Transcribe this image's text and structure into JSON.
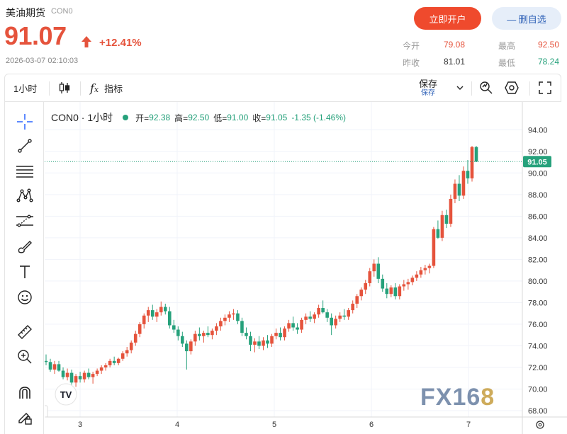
{
  "header": {
    "name": "美油期货",
    "code": "CON0",
    "price": "91.07",
    "change_pct": "+12.41%",
    "timestamp": "2026-03-07 02:10:03"
  },
  "actions": {
    "open_account": "立即开户",
    "remove_watch": "— 删自选"
  },
  "stats": {
    "open_label": "今开",
    "open_value": "79.08",
    "prev_label": "昨收",
    "prev_value": "81.01",
    "high_label": "最高",
    "high_value": "92.50",
    "low_label": "最低",
    "low_value": "78.24"
  },
  "toolbar": {
    "interval": "1小时",
    "indicators": "指标",
    "save": "保存",
    "save_sub": "保存"
  },
  "legend": {
    "symbol": "CON0 · 1小时",
    "open_k": "开=",
    "open_v": "92.38",
    "high_k": "高=",
    "high_v": "92.50",
    "low_k": "低=",
    "low_v": "91.00",
    "close_k": "收=",
    "close_v": "91.05",
    "change_v": "-1.35 (-1.46%)"
  },
  "icons": {
    "left_tools": [
      "crosshair-icon",
      "trend-line-icon",
      "fib-lines-icon",
      "pattern-icon",
      "forecast-icon",
      "brush-icon",
      "text-icon",
      "emoji-icon",
      "ruler-icon",
      "zoom-in-icon",
      "magnet-icon",
      "lock-pencil-icon"
    ]
  },
  "colors": {
    "up": "#e5533c",
    "down": "#26a17b",
    "accent": "#ef4a2d"
  },
  "watermark": "FX168",
  "chart_data": {
    "type": "candlestick",
    "ylim": [
      68,
      95
    ],
    "yticks": [
      "94.00",
      "92.00",
      "90.00",
      "88.00",
      "86.00",
      "84.00",
      "82.00",
      "80.00",
      "78.00",
      "76.00",
      "74.00",
      "72.00",
      "70.00",
      "68.00"
    ],
    "xticks": [
      "3",
      "4",
      "5",
      "6",
      "7"
    ],
    "last_price_label": "91.05",
    "last_price": 91.05,
    "candles": [
      [
        72.6,
        73.2,
        72.2,
        72.5
      ],
      [
        72.5,
        72.8,
        71.6,
        71.8
      ],
      [
        71.8,
        72.6,
        71.4,
        72.3
      ],
      [
        72.3,
        72.6,
        71.6,
        71.7
      ],
      [
        71.7,
        72.0,
        70.9,
        71.1
      ],
      [
        71.1,
        71.9,
        70.8,
        71.5
      ],
      [
        71.5,
        71.8,
        70.4,
        70.6
      ],
      [
        70.6,
        71.4,
        70.2,
        71.2
      ],
      [
        71.2,
        71.6,
        70.6,
        70.9
      ],
      [
        70.9,
        71.7,
        70.6,
        71.5
      ],
      [
        71.5,
        71.9,
        70.9,
        71.1
      ],
      [
        71.1,
        71.6,
        70.5,
        71.4
      ],
      [
        71.4,
        71.9,
        71.2,
        71.7
      ],
      [
        71.7,
        72.2,
        71.4,
        72.0
      ],
      [
        72.0,
        72.4,
        71.7,
        72.2
      ],
      [
        72.2,
        72.8,
        72.0,
        72.6
      ],
      [
        72.6,
        73.0,
        72.2,
        72.4
      ],
      [
        72.4,
        72.9,
        72.2,
        72.8
      ],
      [
        72.8,
        73.5,
        72.6,
        73.3
      ],
      [
        73.3,
        73.9,
        73.0,
        73.6
      ],
      [
        73.6,
        74.5,
        73.3,
        74.3
      ],
      [
        74.3,
        75.4,
        74.0,
        75.1
      ],
      [
        75.1,
        76.2,
        74.8,
        76.0
      ],
      [
        76.0,
        77.0,
        75.6,
        76.8
      ],
      [
        76.8,
        77.6,
        76.2,
        77.3
      ],
      [
        77.3,
        77.8,
        76.4,
        76.7
      ],
      [
        76.7,
        77.4,
        76.2,
        77.1
      ],
      [
        77.1,
        78.1,
        76.8,
        77.6
      ],
      [
        77.6,
        77.9,
        76.9,
        77.2
      ],
      [
        77.2,
        77.6,
        75.6,
        75.9
      ],
      [
        75.9,
        76.4,
        75.2,
        75.5
      ],
      [
        75.5,
        75.8,
        74.5,
        74.9
      ],
      [
        74.9,
        75.3,
        73.9,
        74.2
      ],
      [
        74.2,
        74.5,
        71.8,
        73.5
      ],
      [
        73.5,
        74.6,
        73.2,
        74.4
      ],
      [
        74.4,
        75.4,
        74.0,
        75.1
      ],
      [
        75.1,
        75.7,
        74.5,
        74.9
      ],
      [
        74.9,
        75.4,
        74.3,
        75.2
      ],
      [
        75.2,
        75.8,
        74.8,
        75.0
      ],
      [
        75.0,
        75.6,
        74.6,
        75.4
      ],
      [
        75.4,
        76.1,
        75.0,
        75.8
      ],
      [
        75.8,
        76.6,
        75.4,
        76.3
      ],
      [
        76.3,
        76.9,
        75.9,
        76.6
      ],
      [
        76.6,
        77.2,
        76.2,
        76.9
      ],
      [
        76.9,
        77.4,
        76.4,
        77.0
      ],
      [
        77.0,
        77.3,
        76.0,
        76.3
      ],
      [
        76.3,
        76.6,
        74.9,
        75.2
      ],
      [
        75.2,
        75.7,
        74.6,
        74.9
      ],
      [
        74.9,
        75.3,
        73.5,
        74.1
      ],
      [
        74.1,
        74.7,
        73.4,
        74.4
      ],
      [
        74.4,
        74.9,
        73.7,
        74.0
      ],
      [
        74.0,
        74.8,
        73.6,
        74.5
      ],
      [
        74.5,
        75.0,
        73.8,
        74.2
      ],
      [
        74.2,
        75.1,
        73.9,
        74.9
      ],
      [
        74.9,
        75.6,
        74.6,
        75.2
      ],
      [
        75.2,
        75.7,
        74.5,
        74.8
      ],
      [
        74.8,
        75.8,
        74.5,
        75.6
      ],
      [
        75.6,
        76.4,
        75.3,
        76.1
      ],
      [
        76.1,
        76.7,
        75.4,
        75.7
      ],
      [
        75.7,
        76.1,
        75.1,
        75.5
      ],
      [
        75.5,
        76.6,
        75.2,
        76.4
      ],
      [
        76.4,
        77.0,
        76.0,
        76.7
      ],
      [
        76.7,
        77.2,
        76.2,
        76.5
      ],
      [
        76.5,
        77.1,
        76.1,
        76.9
      ],
      [
        76.9,
        77.8,
        76.6,
        77.5
      ],
      [
        77.5,
        78.2,
        77.0,
        77.1
      ],
      [
        77.1,
        77.4,
        76.2,
        76.6
      ],
      [
        76.6,
        77.0,
        75.0,
        75.9
      ],
      [
        75.9,
        76.8,
        75.6,
        76.5
      ],
      [
        76.5,
        77.1,
        76.2,
        76.8
      ],
      [
        76.8,
        77.4,
        76.4,
        76.7
      ],
      [
        76.7,
        77.5,
        76.4,
        77.3
      ],
      [
        77.3,
        78.2,
        77.0,
        77.9
      ],
      [
        77.9,
        78.8,
        77.5,
        78.6
      ],
      [
        78.6,
        79.4,
        78.2,
        79.2
      ],
      [
        79.2,
        80.1,
        78.8,
        79.8
      ],
      [
        79.8,
        81.2,
        79.5,
        80.9
      ],
      [
        80.9,
        82.0,
        80.4,
        81.6
      ],
      [
        81.6,
        82.2,
        79.8,
        80.2
      ],
      [
        80.2,
        80.6,
        79.0,
        79.3
      ],
      [
        79.3,
        79.8,
        78.4,
        78.8
      ],
      [
        78.8,
        79.6,
        78.5,
        79.4
      ],
      [
        79.4,
        79.8,
        78.3,
        78.6
      ],
      [
        78.6,
        79.7,
        78.3,
        79.5
      ],
      [
        79.5,
        80.1,
        79.1,
        79.7
      ],
      [
        79.7,
        80.2,
        79.2,
        79.9
      ],
      [
        79.9,
        80.5,
        79.6,
        80.3
      ],
      [
        80.3,
        80.9,
        80.0,
        80.6
      ],
      [
        80.6,
        81.3,
        80.3,
        81.0
      ],
      [
        81.0,
        81.5,
        80.6,
        81.2
      ],
      [
        81.2,
        81.6,
        80.7,
        81.4
      ],
      [
        81.4,
        85.0,
        81.2,
        84.8
      ],
      [
        84.8,
        85.6,
        83.9,
        84.0
      ],
      [
        84.0,
        86.5,
        83.7,
        86.1
      ],
      [
        86.1,
        86.6,
        84.9,
        85.3
      ],
      [
        85.3,
        88.0,
        85.0,
        87.6
      ],
      [
        87.6,
        89.4,
        87.2,
        89.0
      ],
      [
        89.0,
        89.8,
        87.4,
        87.9
      ],
      [
        87.9,
        90.6,
        87.6,
        90.2
      ],
      [
        90.2,
        91.2,
        89.0,
        89.5
      ],
      [
        89.5,
        92.5,
        89.2,
        92.4
      ],
      [
        92.4,
        92.5,
        91.0,
        91.05
      ]
    ]
  }
}
